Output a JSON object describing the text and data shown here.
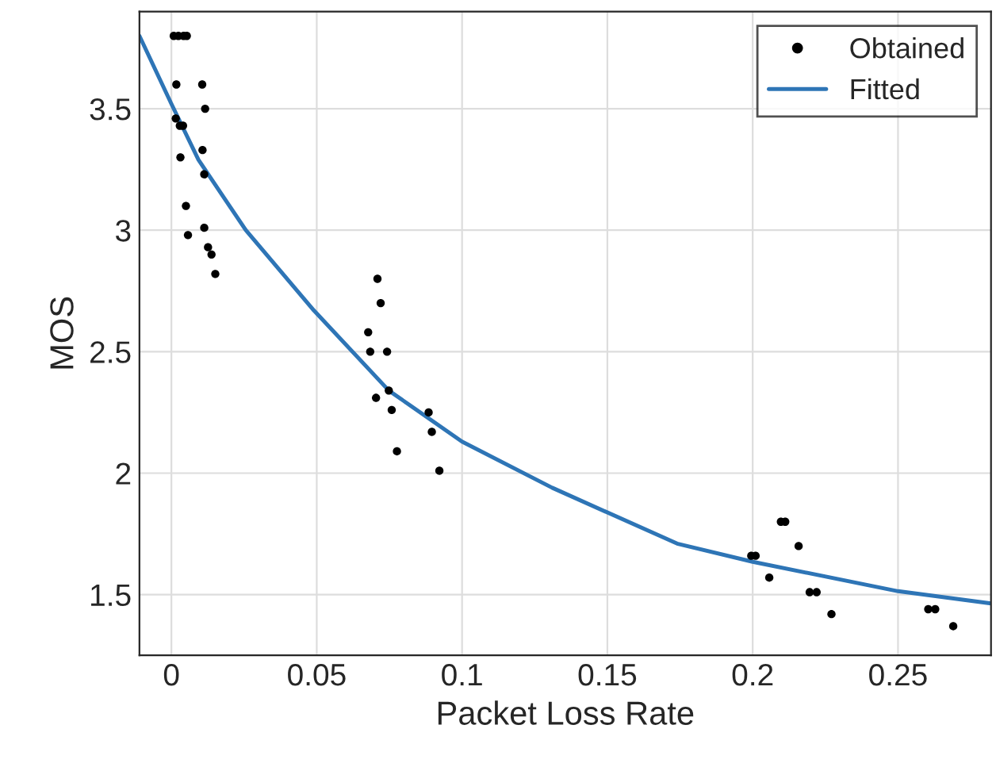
{
  "chart_data": {
    "type": "scatter",
    "xlabel": "Packet Loss Rate",
    "ylabel": "MOS",
    "series": [
      {
        "name": "Obtained",
        "color": "#000000",
        "marker": "circle",
        "x": [
          0.0008,
          0.0024,
          0.0042,
          0.0053,
          0.0017,
          0.0106,
          0.0116,
          0.0015,
          0.0029,
          0.004,
          0.0031,
          0.0107,
          0.0113,
          0.005,
          0.0057,
          0.0113,
          0.0126,
          0.0138,
          0.0151,
          0.0709,
          0.072,
          0.0677,
          0.0684,
          0.0742,
          0.0748,
          0.0704,
          0.0758,
          0.0885,
          0.0896,
          0.0776,
          0.0922,
          0.1995,
          0.201,
          0.2097,
          0.2112,
          0.2158,
          0.2057,
          0.2196,
          0.222,
          0.2271,
          0.2604,
          0.2628,
          0.269
        ],
        "values": [
          3.8,
          3.8,
          3.8,
          3.8,
          3.6,
          3.6,
          3.5,
          3.46,
          3.43,
          3.43,
          3.3,
          3.33,
          3.23,
          3.1,
          2.98,
          3.01,
          2.93,
          2.9,
          2.82,
          2.8,
          2.7,
          2.58,
          2.5,
          2.5,
          2.34,
          2.31,
          2.26,
          2.25,
          2.17,
          2.09,
          2.01,
          1.66,
          1.66,
          1.8,
          1.8,
          1.7,
          1.57,
          1.51,
          1.51,
          1.42,
          1.44,
          1.44,
          1.37
        ]
      },
      {
        "name": "Fitted",
        "type": "line",
        "color": "#2e75b6",
        "marker": "none",
        "x": [
          -0.011,
          0,
          0.0093,
          0.0256,
          0.049,
          0.0748,
          0.1,
          0.131,
          0.174,
          0.2,
          0.25,
          0.282
        ],
        "values": [
          3.8,
          3.52,
          3.29,
          3.0,
          2.67,
          2.34,
          2.13,
          1.94,
          1.71,
          1.635,
          1.514,
          1.464
        ]
      }
    ],
    "xlim": [
      -0.011,
      0.282
    ],
    "xticks": [
      0,
      0.05,
      0.1,
      0.15,
      0.2,
      0.25
    ],
    "ylim": [
      1.25,
      3.9
    ],
    "yticks": [
      1.5,
      2,
      2.5,
      3,
      3.5
    ],
    "grid": true,
    "legend": "top right"
  }
}
